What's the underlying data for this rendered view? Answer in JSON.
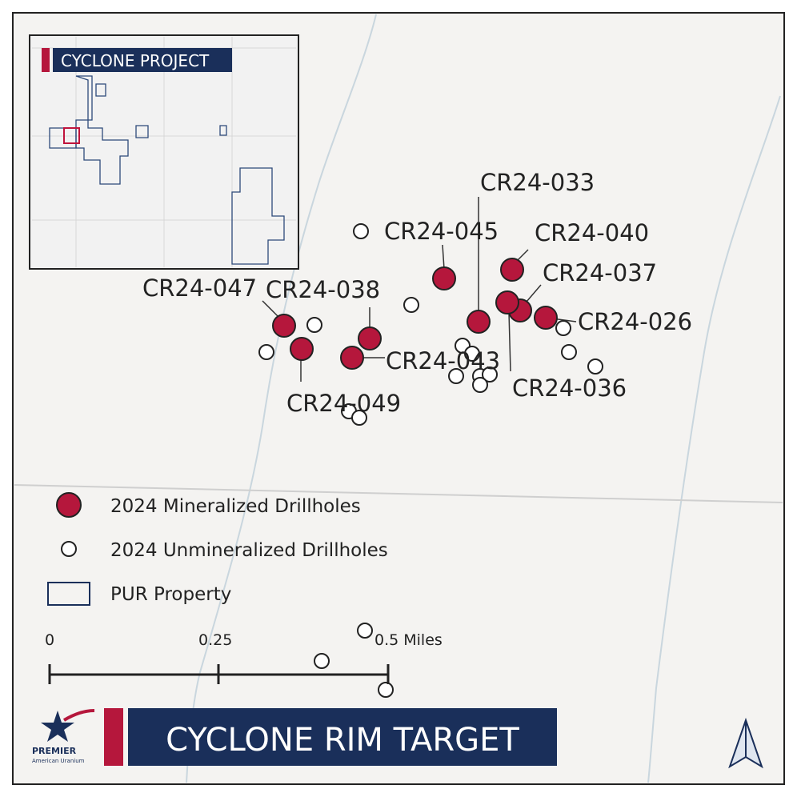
{
  "title": "CYCLONE RIM TARGET",
  "inset": {
    "title": "CYCLONE PROJECT"
  },
  "drillhole_labels": [
    "CR24-033",
    "CR24-045",
    "CR24-040",
    "CR24-037",
    "CR24-026",
    "CR24-036",
    "CR24-047",
    "CR24-038",
    "CR24-043",
    "CR24-049"
  ],
  "legend": [
    "2024 Mineralized Drillholes",
    "2024 Unmineralized Drillholes",
    "PUR Property"
  ],
  "scale": [
    "0",
    "0.25",
    "0.5 Miles"
  ],
  "logo": {
    "name": "PREMIER",
    "subtitle": "American Uranium"
  }
}
